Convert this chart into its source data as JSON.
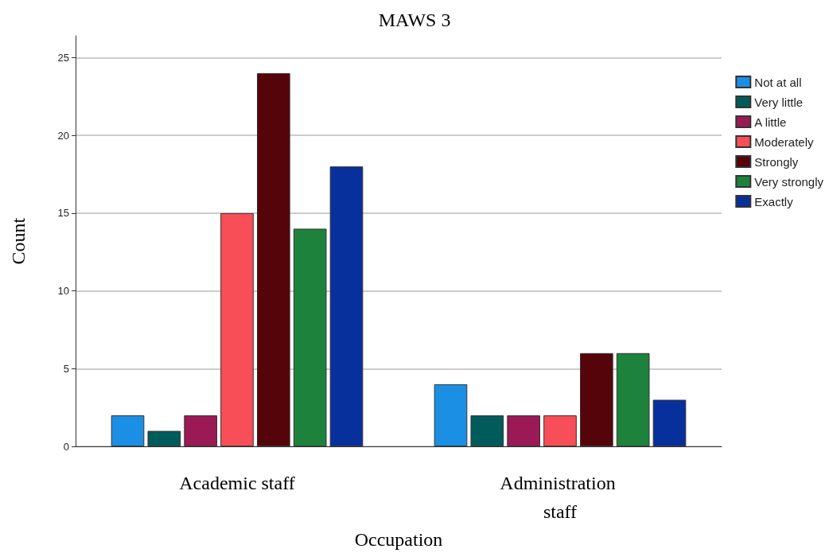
{
  "chart_data": {
    "type": "bar",
    "title": "MAWS 3",
    "xlabel": "Occupation",
    "ylabel": "Count",
    "categories": [
      "Academic staff",
      "Administration staff"
    ],
    "series": [
      {
        "name": "Not at all",
        "color": "#1b8fe3",
        "values": [
          2,
          4
        ]
      },
      {
        "name": "Very little",
        "color": "#005c5a",
        "values": [
          1,
          2
        ]
      },
      {
        "name": "A little",
        "color": "#9b1a55",
        "values": [
          2,
          2
        ]
      },
      {
        "name": "Moderately",
        "color": "#f84e58",
        "values": [
          15,
          2
        ]
      },
      {
        "name": "Strongly",
        "color": "#55040a",
        "values": [
          24,
          6
        ]
      },
      {
        "name": "Very strongly",
        "color": "#1d823b",
        "values": [
          14,
          6
        ]
      },
      {
        "name": "Exactly",
        "color": "#08309c",
        "values": [
          18,
          3
        ]
      }
    ],
    "ylim": [
      0,
      26.4
    ],
    "yticks": [
      0,
      5,
      10,
      15,
      20,
      25
    ],
    "grid": "y",
    "legend": "top right"
  }
}
